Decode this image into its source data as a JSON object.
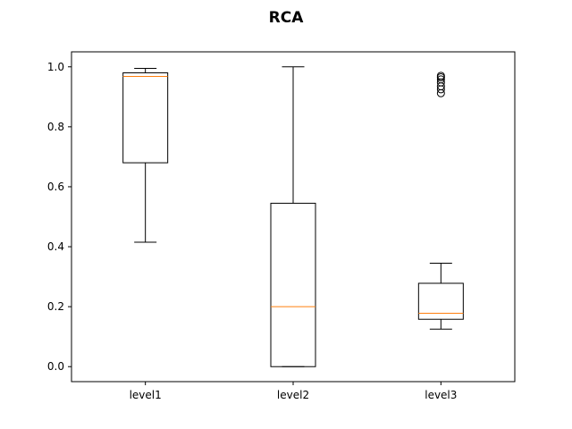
{
  "chart_data": {
    "type": "box",
    "title": "RCA",
    "xlabel": "",
    "ylabel": "",
    "categories": [
      "level1",
      "level2",
      "level3"
    ],
    "ylim": [
      -0.05,
      1.05
    ],
    "yticks": [
      "0.0",
      "0.2",
      "0.4",
      "0.6",
      "0.8",
      "1.0"
    ],
    "grid": false,
    "boxes": [
      {
        "name": "level1",
        "whisker_low": 0.415,
        "q1": 0.68,
        "median": 0.968,
        "q3": 0.98,
        "whisker_high": 0.995,
        "outliers": []
      },
      {
        "name": "level2",
        "whisker_low": 0.0,
        "q1": 0.0,
        "median": 0.2,
        "q3": 0.545,
        "whisker_high": 1.0,
        "outliers": []
      },
      {
        "name": "level3",
        "whisker_low": 0.125,
        "q1": 0.158,
        "median": 0.178,
        "q3": 0.278,
        "whisker_high": 0.345,
        "outliers": [
          0.912,
          0.925,
          0.935,
          0.948,
          0.958,
          0.965,
          0.97
        ]
      }
    ],
    "colors": {
      "box": "#000000",
      "median": "#ff7f0e",
      "outlier": "#000000"
    }
  }
}
